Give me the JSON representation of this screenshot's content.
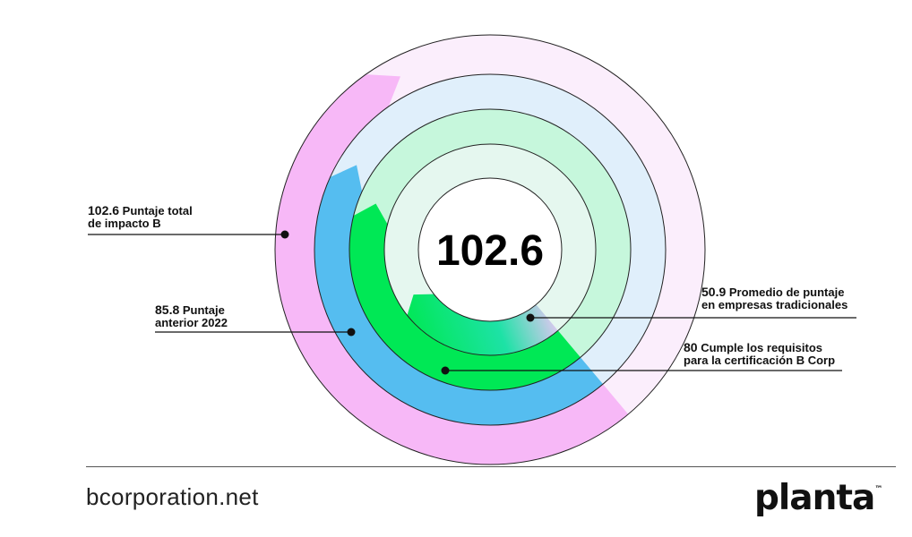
{
  "chart_data": {
    "type": "radial-bar",
    "center_value": "102.6",
    "scale_max": 200,
    "rings": [
      {
        "value": 102.6,
        "label": "Puntaje total de impacto B",
        "color": "#f7b8f7",
        "track_color": "#fbeefc"
      },
      {
        "value": 85.8,
        "label": "Puntaje anterior 2022",
        "color": "#55bdf0",
        "track_color": "#e0effb"
      },
      {
        "value": 80,
        "label": "Cumple los requisitos para la certificación B Corp",
        "color": "#00e855",
        "track_color": "#c6f7dc"
      },
      {
        "value": 50.9,
        "label": "Promedio de puntaje en empresas tradicionales",
        "color": "#1de2a6",
        "track_color": "#e5f7ef"
      }
    ],
    "callouts": [
      {
        "num": "102.6",
        "line1": "Puntaje total",
        "line2": "de impacto B"
      },
      {
        "num": "85.8",
        "line1": "Puntaje",
        "line2": "anterior 2022"
      },
      {
        "num": "50.9",
        "line1": "Promedio de puntaje",
        "line2": "en empresas tradicionales"
      },
      {
        "num": "80",
        "line1": "Cumple los requisitos",
        "line2": "para la certificación B Corp"
      }
    ]
  },
  "footer": {
    "website": "bcorporation.net",
    "brand": "planta",
    "brand_mark": "™"
  }
}
